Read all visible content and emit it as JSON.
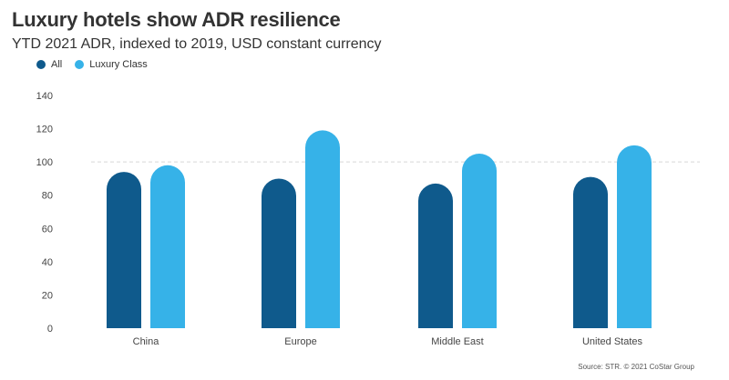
{
  "chart_data": {
    "type": "bar",
    "title": "Luxury hotels show ADR resilience",
    "subtitle": "YTD 2021 ADR, indexed to 2019, USD constant currency",
    "categories": [
      "China",
      "Europe",
      "Middle East",
      "United States"
    ],
    "series": [
      {
        "name": "All",
        "color": "#0f5a8c",
        "values": [
          94,
          90,
          87,
          91
        ]
      },
      {
        "name": "Luxury Class",
        "color": "#36b2e8",
        "values": [
          98,
          119,
          105,
          110
        ]
      }
    ],
    "ylim": [
      0,
      140
    ],
    "yticks": [
      0,
      20,
      40,
      60,
      80,
      100,
      120,
      140
    ],
    "reference_line": 100,
    "grid": false,
    "legend_position": "top-left",
    "source": "Source: STR. © 2021 CoStar Group"
  }
}
